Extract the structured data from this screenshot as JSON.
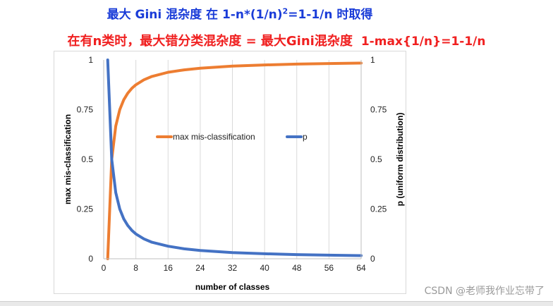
{
  "heading_1": {
    "text_a": "最大 Gini 混杂度 在 1-n*(1/n)",
    "sup": "2",
    "text_b": "=1-1/n 时取得"
  },
  "heading_2": {
    "text": "在有n类时，最大错分类混杂度 = 最大Gini混杂度",
    "formula": "1-max{1/n}=1-1/n"
  },
  "watermark": "CSDN @老师我作业忘带了",
  "colors": {
    "orange": "#ED7D31",
    "blue": "#4472C4",
    "title_blue": "#1a3cd8",
    "title_red": "#f02020"
  },
  "chart_data": {
    "type": "line",
    "xlabel": "number of classes",
    "ylabel_left": "max mis-classification",
    "ylabel_right": "p (uniform distribution)",
    "xlim": [
      0,
      64
    ],
    "ylim": [
      0,
      1
    ],
    "x_ticks": [
      0,
      8,
      16,
      24,
      32,
      40,
      48,
      56,
      64
    ],
    "y_ticks": [
      "0",
      "0.25",
      "0.5",
      "0.75",
      "1"
    ],
    "grid": "vertical",
    "legend_position": "center",
    "series": [
      {
        "name": "max mis-classification",
        "axis": "left",
        "color": "#ED7D31",
        "x": [
          1,
          2,
          3,
          4,
          5,
          6,
          7,
          8,
          10,
          12,
          16,
          20,
          24,
          32,
          40,
          48,
          56,
          64
        ],
        "y": [
          0,
          0.5,
          0.667,
          0.75,
          0.8,
          0.833,
          0.857,
          0.875,
          0.9,
          0.917,
          0.938,
          0.95,
          0.958,
          0.969,
          0.975,
          0.979,
          0.982,
          0.984
        ]
      },
      {
        "name": "p",
        "axis": "right",
        "color": "#4472C4",
        "x": [
          1,
          2,
          3,
          4,
          5,
          6,
          7,
          8,
          10,
          12,
          16,
          20,
          24,
          32,
          40,
          48,
          56,
          64
        ],
        "y": [
          1,
          0.5,
          0.333,
          0.25,
          0.2,
          0.167,
          0.143,
          0.125,
          0.1,
          0.083,
          0.063,
          0.05,
          0.042,
          0.031,
          0.025,
          0.021,
          0.018,
          0.016
        ]
      }
    ]
  }
}
